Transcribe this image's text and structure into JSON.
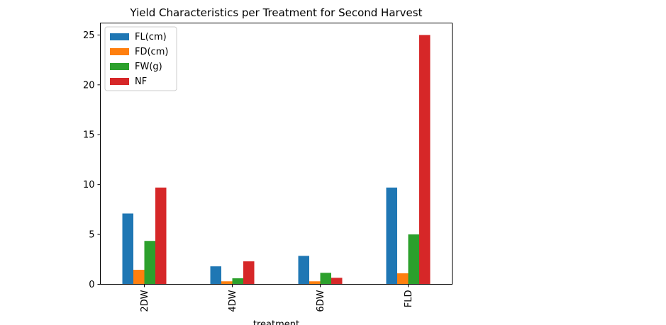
{
  "chart_data": {
    "type": "bar",
    "title": "Yield Characteristics per Treatment for Second Harvest",
    "xlabel": "treatment",
    "ylabel": "",
    "categories": [
      "2DW",
      "4DW",
      "6DW",
      "FLD"
    ],
    "ylim": [
      0,
      26.2
    ],
    "yticks": [
      0,
      5,
      10,
      15,
      20,
      25
    ],
    "legend_position": "top-left",
    "grid": false,
    "series": [
      {
        "name": "FL(cm)",
        "color": "#1f77b4",
        "values": [
          7.1,
          1.8,
          2.85,
          9.7
        ]
      },
      {
        "name": "FD(cm)",
        "color": "#ff7f0e",
        "values": [
          1.45,
          0.3,
          0.3,
          1.1
        ]
      },
      {
        "name": "FW(g)",
        "color": "#2ca02c",
        "values": [
          4.35,
          0.6,
          1.15,
          5.0
        ]
      },
      {
        "name": "NF",
        "color": "#d62728",
        "values": [
          9.7,
          2.3,
          0.65,
          25.0
        ]
      }
    ]
  }
}
